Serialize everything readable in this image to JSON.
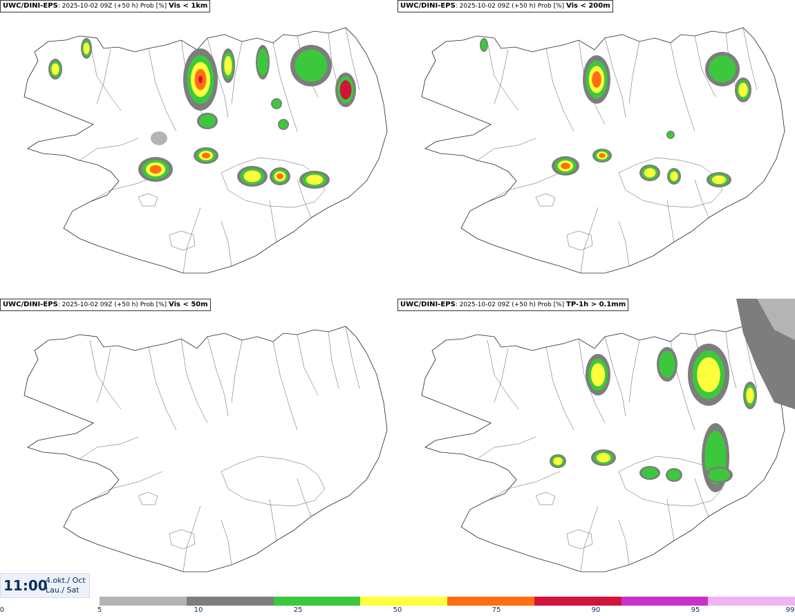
{
  "panels": [
    {
      "model": "UWC/DINI-EPS",
      "info": ": 2025-10-02 09Z (+50 h) Prob [%] ",
      "variable": "Vis < 1km"
    },
    {
      "model": "UWC/DINI-EPS",
      "info": ": 2025-10-02 09Z (+50 h) Prob [%] ",
      "variable": "Vis < 200m"
    },
    {
      "model": "UWC/DINI-EPS",
      "info": ": 2025-10-02 09Z (+50 h) Prob [%] ",
      "variable": "Vis < 50m"
    },
    {
      "model": "UWC/DINI-EPS",
      "info": ": 2025-10-02 09Z (+50 h) Prob [%] ",
      "variable": "TP-1h > 0.1mm"
    }
  ],
  "valid_time": {
    "time": "11:00",
    "date_line1": "4.okt./ Oct",
    "date_line2": "Lau./ Sat"
  },
  "legend": {
    "ticks": [
      "0",
      "5",
      "10",
      "25",
      "50",
      "75",
      "90",
      "95",
      "99"
    ],
    "colors": [
      "#b4b4b4",
      "#7d7d7d",
      "#3cc83c",
      "#ffff3c",
      "#ff6e14",
      "#d2143c",
      "#c832c8",
      "#f0b4f0"
    ]
  }
}
